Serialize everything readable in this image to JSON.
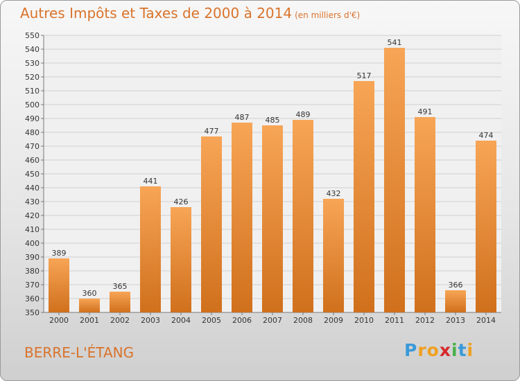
{
  "chart_data": {
    "type": "bar",
    "title": "Autres Impôts et Taxes de 2000 à 2014",
    "subtitle": "(en milliers d'€)",
    "categories": [
      "2000",
      "2001",
      "2002",
      "2003",
      "2004",
      "2005",
      "2006",
      "2007",
      "2008",
      "2009",
      "2010",
      "2011",
      "2012",
      "2013",
      "2014"
    ],
    "values": [
      389,
      360,
      365,
      441,
      426,
      477,
      487,
      485,
      489,
      432,
      517,
      541,
      491,
      366,
      474
    ],
    "ylim": [
      350,
      550
    ],
    "ytick_step": 10,
    "grid": true,
    "bar_color_top": "#f7a556",
    "bar_color_bottom": "#d0701c",
    "xlabel": "",
    "ylabel": ""
  },
  "place_name": "BERRE-L'ÉTANG",
  "logo": {
    "letters": [
      "P",
      "r",
      "o",
      "x",
      "i",
      "t",
      "i"
    ],
    "colors": [
      "#3a9ad9",
      "#f0a020",
      "#f0a020",
      "#d8282a",
      "#48b048",
      "#3a9ad9",
      "#f0a020"
    ]
  }
}
